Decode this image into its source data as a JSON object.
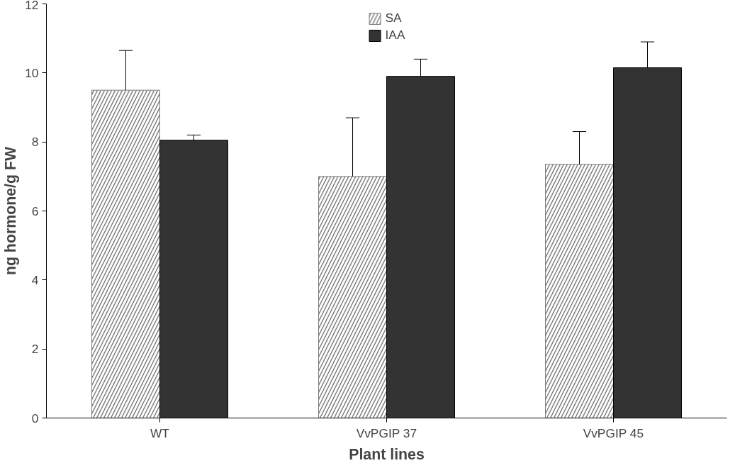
{
  "chart_data": {
    "type": "bar",
    "xlabel": "Plant lines",
    "ylabel": "ng hormone/g FW",
    "categories": [
      "WT",
      "VvPGIP 37",
      "VvPGIP 45"
    ],
    "series": [
      {
        "name": "SA",
        "color": "#808080",
        "values": [
          9.5,
          7.0,
          7.35
        ],
        "errors": [
          [
            9.5,
            10.65
          ],
          [
            7.0,
            8.7
          ],
          [
            7.35,
            8.3
          ]
        ]
      },
      {
        "name": "IAA",
        "color": "#333333",
        "values": [
          8.05,
          9.9,
          10.15
        ],
        "errors": [
          [
            8.05,
            8.2
          ],
          [
            9.9,
            10.4
          ],
          [
            10.15,
            10.9
          ]
        ]
      }
    ],
    "ylim": [
      0,
      12
    ],
    "yticks": [
      0,
      2,
      4,
      6,
      8,
      10,
      12
    ],
    "legend": "top",
    "grid": false
  }
}
